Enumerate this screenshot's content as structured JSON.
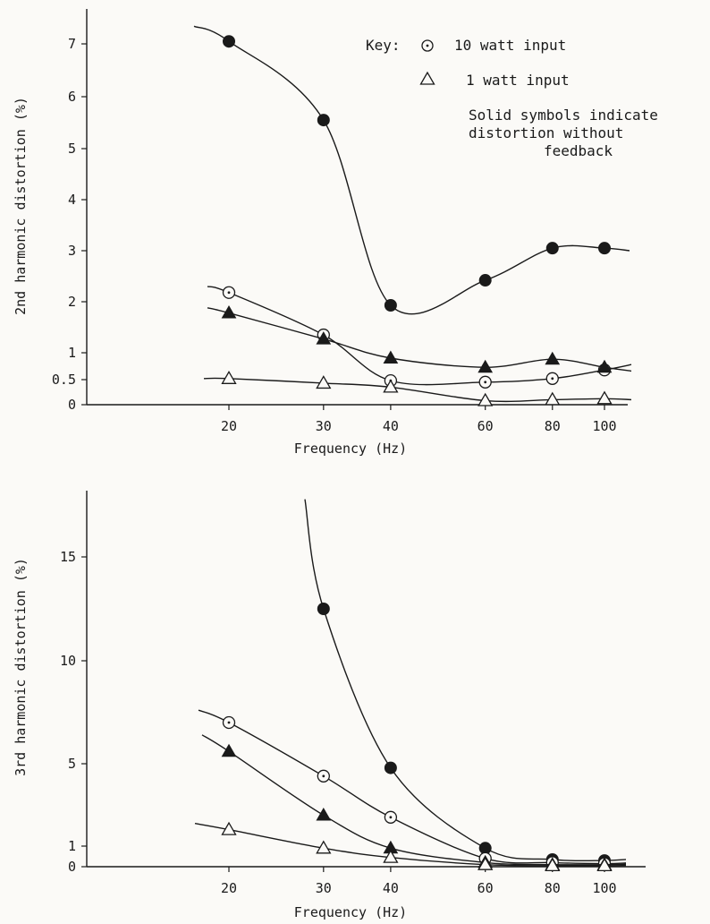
{
  "key": {
    "prefix": "Key:",
    "circle_label": "10 watt input",
    "triangle_label": "1 watt input",
    "note_line1": "Solid symbols indicate",
    "note_line2": "distortion without",
    "note_line3": "feedback"
  },
  "chart_data": [
    {
      "type": "line",
      "xlabel": "Frequency (Hz)",
      "ylabel": "2nd harmonic distortion (%)",
      "x_ticks": [
        20,
        30,
        40,
        60,
        80,
        100
      ],
      "y_ticks": [
        0,
        0.5,
        1,
        2,
        3,
        4,
        5,
        6,
        7
      ],
      "ylim": [
        0,
        7.8
      ],
      "grid": false,
      "series": [
        {
          "marker": "filled-circle",
          "x": [
            20,
            30,
            40,
            60,
            80,
            100
          ],
          "y": [
            7.05,
            5.55,
            1.93,
            2.42,
            3.05,
            3.05
          ]
        },
        {
          "marker": "open-circle",
          "x": [
            20,
            30,
            40,
            60,
            80,
            100
          ],
          "y": [
            2.18,
            1.35,
            0.48,
            0.45,
            0.52,
            0.68
          ]
        },
        {
          "marker": "filled-triangle",
          "x": [
            20,
            30,
            40,
            60,
            80,
            100
          ],
          "y": [
            1.78,
            1.27,
            0.9,
            0.73,
            0.88,
            0.73
          ]
        },
        {
          "marker": "open-triangle",
          "x": [
            20,
            30,
            40,
            60,
            80,
            100
          ],
          "y": [
            0.52,
            0.43,
            0.35,
            0.08,
            0.1,
            0.12
          ]
        }
      ]
    },
    {
      "type": "line",
      "xlabel": "Frequency (Hz)",
      "ylabel": "3rd harmonic distortion (%)",
      "x_ticks": [
        20,
        30,
        40,
        60,
        80,
        100
      ],
      "y_ticks": [
        0,
        1,
        5,
        10,
        15
      ],
      "ylim": [
        0,
        18
      ],
      "grid": false,
      "series": [
        {
          "marker": "filled-circle",
          "x": [
            30,
            40,
            60,
            80,
            100
          ],
          "y": [
            12.5,
            4.8,
            0.9,
            0.35,
            0.3
          ]
        },
        {
          "marker": "open-circle",
          "x": [
            20,
            30,
            40,
            60,
            80,
            100
          ],
          "y": [
            7.0,
            4.4,
            2.4,
            0.4,
            0.2,
            0.15
          ]
        },
        {
          "marker": "filled-triangle",
          "x": [
            20,
            30,
            40,
            60,
            80,
            100
          ],
          "y": [
            5.6,
            2.5,
            0.9,
            0.2,
            0.1,
            0.1
          ]
        },
        {
          "marker": "open-triangle",
          "x": [
            20,
            30,
            40,
            60,
            80,
            100
          ],
          "y": [
            1.8,
            0.9,
            0.45,
            0.1,
            0.05,
            0.05
          ]
        }
      ]
    }
  ]
}
